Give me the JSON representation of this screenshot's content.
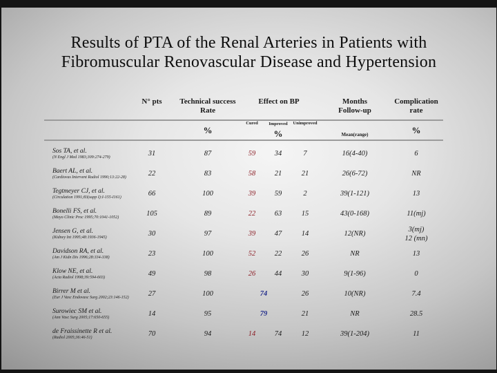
{
  "slide": {
    "title_line1": "Results of PTA of the Renal Arteries in Patients with",
    "title_line2": "Fibromuscular Renovascular Disease and Hypertension"
  },
  "colors": {
    "cured_highlight": "#8b1c24",
    "combined_highlight": "#232e8c",
    "text": "#1a1a1a",
    "rule": "#9b9b9b"
  },
  "table": {
    "headers": {
      "n_pts": "N° pts",
      "technical": "Technical success Rate",
      "effect_on_bp": "Effect on BP",
      "months_followup": "Months Follow-up",
      "complication": "Complication rate",
      "percent": "%",
      "cured": "Cured",
      "improved": "Improved",
      "unimproved": "Unimproved",
      "mean_range": "Mean(range)"
    },
    "rows": [
      {
        "study": "Sos TA, et al.",
        "citation": "(N Engl J Med 1983;309:274-279)",
        "n_pts": "31",
        "technical": "87",
        "cured": "59",
        "improved": "34",
        "unimproved": "7",
        "followup": "16(4-40)",
        "complication": "6"
      },
      {
        "study": "Baert AL, et al.",
        "citation": "(Cardiovas Intervent Radiol 1990;13:22-28)",
        "n_pts": "22",
        "technical": "83",
        "cured": "58",
        "improved": "21",
        "unimproved": "21",
        "followup": "26(6-72)",
        "complication": "NR"
      },
      {
        "study": "Tegtmeyer CJ, et al.",
        "citation": "(Circulation 1991;83(supp I):I-155-I161)",
        "n_pts": "66",
        "technical": "100",
        "cured": "39",
        "improved": "59",
        "unimproved": "2",
        "followup": "39(1-121)",
        "complication": "13"
      },
      {
        "study": "Bonelli FS, et al.",
        "citation": "(Mayo Clinic Proc 1995;70:1041-1052)",
        "n_pts": "105",
        "technical": "89",
        "cured": "22",
        "improved": "63",
        "unimproved": "15",
        "followup": "43(0-168)",
        "complication": "11(mj)"
      },
      {
        "study": "Jensen G, et al.",
        "citation": "(Kidney Int 1995;48:1936-1945)",
        "n_pts": "30",
        "technical": "97",
        "cured": "39",
        "improved": "47",
        "unimproved": "14",
        "followup": "12(NR)",
        "complication": "3(mj)",
        "complication2": "12 (mn)"
      },
      {
        "study": "Davidson RA, et al.",
        "citation": "(Am J Kidn Dis 1996;28:334-338)",
        "n_pts": "23",
        "technical": "100",
        "cured": "52",
        "improved": "22",
        "unimproved": "26",
        "followup": "NR",
        "complication": "13"
      },
      {
        "study": "Klow NE, et al.",
        "citation": "(Acta Radiol 1998;39:594-603)",
        "n_pts": "49",
        "technical": "98",
        "cured": "26",
        "improved": "44",
        "unimproved": "30",
        "followup": "9(1-96)",
        "complication": "0"
      },
      {
        "study": "Birrer M et al.",
        "citation": "(Eur J Vasc Endovasc Surg 2002;23:146-152)",
        "n_pts": "27",
        "technical": "100",
        "bp_span": "74",
        "unimproved": "26",
        "followup": "10(NR)",
        "complication": "7.4"
      },
      {
        "study": "Surowiec SM et al.",
        "citation": "(Ann Vasc Surg 2005;17:650-655)",
        "n_pts": "14",
        "technical": "95",
        "bp_span": "79",
        "unimproved": "21",
        "followup": "NR",
        "complication": "28.5"
      },
      {
        "study": "de Fraissinette R et al.",
        "citation": "(Radiol 2005;36:46-51)",
        "n_pts": "70",
        "technical": "94",
        "cured": "14",
        "improved": "74",
        "unimproved": "12",
        "followup": "39(1-204)",
        "complication": "11"
      }
    ]
  }
}
